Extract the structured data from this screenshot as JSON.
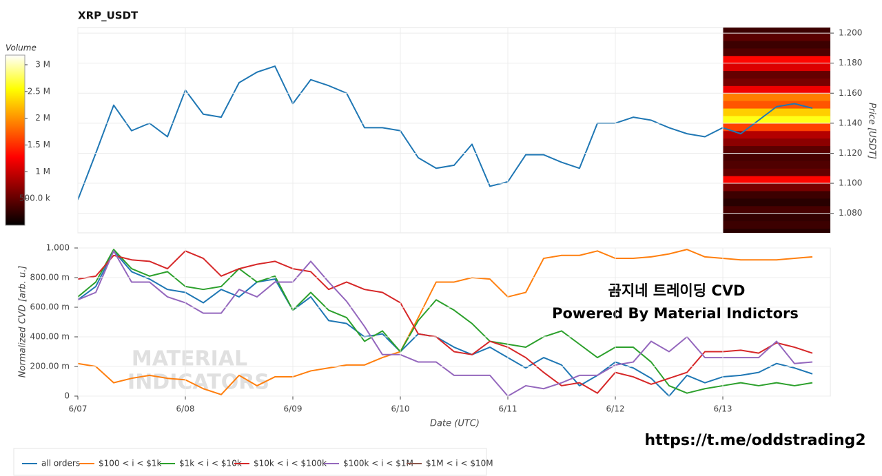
{
  "chart_data": [
    {
      "type": "line",
      "title": "XRP_USDT",
      "ylabel": "Price [USDT]",
      "color": "#1f77b4",
      "xlim": [
        0,
        168
      ],
      "ylim": [
        1.067,
        1.2037
      ],
      "yticks": [
        {
          "value": 1.08,
          "label": "1.080"
        },
        {
          "value": 1.1,
          "label": "1.100"
        },
        {
          "value": 1.12,
          "label": "1.120"
        },
        {
          "value": 1.14,
          "label": "1.140"
        },
        {
          "value": 1.16,
          "label": "1.160"
        },
        {
          "value": 1.18,
          "label": "1.180"
        },
        {
          "value": 1.2,
          "label": "1.200"
        }
      ],
      "grid": true,
      "x": [
        0,
        4,
        8,
        12,
        16,
        20,
        24,
        28,
        32,
        36,
        40,
        44,
        48,
        52,
        56,
        60,
        64,
        68,
        72,
        76,
        80,
        84,
        88,
        92,
        96,
        100,
        104,
        108,
        112,
        116,
        120,
        124,
        128,
        132,
        136,
        140,
        144,
        148,
        152,
        156,
        160,
        164
      ],
      "values": [
        1.089,
        1.12,
        1.152,
        1.135,
        1.14,
        1.131,
        1.162,
        1.146,
        1.144,
        1.167,
        1.174,
        1.178,
        1.153,
        1.169,
        1.165,
        1.16,
        1.137,
        1.137,
        1.135,
        1.117,
        1.11,
        1.112,
        1.126,
        1.098,
        1.101,
        1.119,
        1.119,
        1.114,
        1.11,
        1.14,
        1.14,
        1.144,
        1.142,
        1.137,
        1.133,
        1.131,
        1.137,
        1.133,
        1.142,
        1.151,
        1.153,
        1.15
      ],
      "heatmap": {
        "colorbar_label": "Volume",
        "x_range": [
          144,
          168
        ],
        "price_bins": [
          1.065,
          1.07,
          1.075,
          1.08,
          1.085,
          1.09,
          1.095,
          1.1,
          1.105,
          1.11,
          1.115,
          1.12,
          1.125,
          1.13,
          1.135,
          1.14,
          1.145,
          1.15,
          1.155,
          1.16,
          1.165,
          1.17,
          1.175,
          1.18,
          1.185,
          1.19,
          1.195,
          1.2,
          1.205
        ],
        "values": [
          200000,
          300000,
          250000,
          350000,
          200000,
          300000,
          600000,
          1300000,
          500000,
          400000,
          350000,
          450000,
          700000,
          900000,
          1600000,
          2600000,
          2300000,
          1700000,
          1900000,
          1200000,
          600000,
          500000,
          1100000,
          1300000,
          400000,
          300000,
          450000,
          300000
        ],
        "clim": [
          0,
          3180000
        ],
        "cticks": [
          {
            "value": 500000,
            "label": "500.0 k"
          },
          {
            "value": 1000000,
            "label": "1 M"
          },
          {
            "value": 1500000,
            "label": "1.5 M"
          },
          {
            "value": 2000000,
            "label": "2 M"
          },
          {
            "value": 2500000,
            "label": "2.5 M"
          },
          {
            "value": 3000000,
            "label": "3 M"
          }
        ]
      }
    },
    {
      "type": "line",
      "xlabel": "Date (UTC)",
      "ylabel": "Normalized CVD [arb. u.]",
      "xlim": [
        0,
        168
      ],
      "ylim": [
        0,
        1
      ],
      "grid": true,
      "xticks": [
        {
          "value": 0,
          "label": "6/07"
        },
        {
          "value": 24,
          "label": "6/08"
        },
        {
          "value": 48,
          "label": "6/09"
        },
        {
          "value": 72,
          "label": "6/10"
        },
        {
          "value": 96,
          "label": "6/11"
        },
        {
          "value": 120,
          "label": "6/12"
        },
        {
          "value": 144,
          "label": "6/13"
        }
      ],
      "yticks": [
        0,
        {
          "value": 0.2,
          "label": "200.00 m"
        },
        {
          "value": 0.4,
          "label": "400.00 m"
        },
        {
          "value": 0.6,
          "label": "600.00 m"
        },
        {
          "value": 0.8,
          "label": "800.00 m"
        },
        {
          "value": 1,
          "label": "1.000"
        }
      ],
      "annotations": [
        "곰지네 트레이딩 CVD",
        "Powered By Material Indictors"
      ],
      "x": [
        0,
        4,
        8,
        12,
        16,
        20,
        24,
        28,
        32,
        36,
        40,
        44,
        48,
        52,
        56,
        60,
        64,
        68,
        72,
        76,
        80,
        84,
        88,
        92,
        96,
        100,
        104,
        108,
        112,
        116,
        120,
        124,
        128,
        132,
        136,
        140,
        144,
        148,
        152,
        156,
        160,
        164
      ],
      "series": [
        {
          "name": "all orders",
          "color": "#1f77b4",
          "values": [
            0.65,
            0.74,
            0.98,
            0.84,
            0.79,
            0.72,
            0.7,
            0.63,
            0.72,
            0.67,
            0.77,
            0.79,
            0.58,
            0.67,
            0.51,
            0.49,
            0.4,
            0.42,
            0.3,
            0.42,
            0.4,
            0.33,
            0.28,
            0.33,
            0.26,
            0.19,
            0.26,
            0.21,
            0.07,
            0.14,
            0.23,
            0.19,
            0.12,
            0.0,
            0.14,
            0.09,
            0.13,
            0.14,
            0.16,
            0.22,
            0.19,
            0.15
          ]
        },
        {
          "name": "$100 < i < $1k",
          "color": "#ff7f0e",
          "values": [
            0.22,
            0.2,
            0.09,
            0.12,
            0.14,
            0.12,
            0.11,
            0.05,
            0.01,
            0.14,
            0.07,
            0.13,
            0.13,
            0.17,
            0.19,
            0.21,
            0.21,
            0.26,
            0.3,
            0.53,
            0.77,
            0.77,
            0.8,
            0.79,
            0.67,
            0.7,
            0.93,
            0.95,
            0.95,
            0.98,
            0.93,
            0.93,
            0.94,
            0.96,
            0.99,
            0.94,
            0.93,
            0.92,
            0.92,
            0.92,
            0.93,
            0.94
          ]
        },
        {
          "name": "$1k < i < $10k",
          "color": "#2ca02c",
          "values": [
            0.67,
            0.77,
            0.99,
            0.86,
            0.81,
            0.84,
            0.74,
            0.72,
            0.74,
            0.86,
            0.77,
            0.81,
            0.58,
            0.7,
            0.58,
            0.53,
            0.37,
            0.44,
            0.3,
            0.51,
            0.65,
            0.58,
            0.49,
            0.37,
            0.35,
            0.33,
            0.4,
            0.44,
            0.35,
            0.26,
            0.33,
            0.33,
            0.23,
            0.07,
            0.02,
            0.05,
            0.07,
            0.09,
            0.07,
            0.09,
            0.07,
            0.09
          ]
        },
        {
          "name": "$10k < i < $100k",
          "color": "#d62728",
          "values": [
            0.79,
            0.81,
            0.95,
            0.92,
            0.91,
            0.86,
            0.98,
            0.93,
            0.81,
            0.86,
            0.89,
            0.91,
            0.86,
            0.84,
            0.72,
            0.77,
            0.72,
            0.7,
            0.63,
            0.42,
            0.4,
            0.3,
            0.28,
            0.37,
            0.33,
            0.26,
            0.16,
            0.07,
            0.09,
            0.02,
            0.16,
            0.13,
            0.08,
            0.12,
            0.16,
            0.3,
            0.3,
            0.31,
            0.29,
            0.36,
            0.33,
            0.29
          ]
        },
        {
          "name": "$100k < i < $1M",
          "color": "#9467bd",
          "values": [
            0.65,
            0.7,
            0.98,
            0.77,
            0.77,
            0.67,
            0.63,
            0.56,
            0.56,
            0.72,
            0.67,
            0.77,
            0.77,
            0.91,
            0.77,
            0.64,
            0.47,
            0.28,
            0.28,
            0.23,
            0.23,
            0.14,
            0.14,
            0.14,
            0.0,
            0.07,
            0.05,
            0.09,
            0.14,
            0.14,
            0.21,
            0.23,
            0.37,
            0.3,
            0.4,
            0.26,
            0.26,
            0.26,
            0.26,
            0.37,
            0.22,
            0.23
          ]
        },
        {
          "name": "$1M < i < $10M",
          "color": "#8c564b",
          "values": [
            null,
            null,
            null,
            null,
            null,
            null,
            null,
            null,
            null,
            null,
            null,
            null,
            null,
            null,
            null,
            null,
            null,
            null,
            null,
            null,
            null,
            null,
            null,
            null,
            null,
            null,
            null,
            null,
            null,
            null,
            null,
            null,
            null,
            null,
            null,
            null,
            null,
            null,
            null,
            null,
            null,
            null
          ]
        }
      ]
    }
  ],
  "watermark": [
    "MATERIAL",
    "INDICATORS"
  ],
  "footer": "https://t.me/oddstrading2"
}
